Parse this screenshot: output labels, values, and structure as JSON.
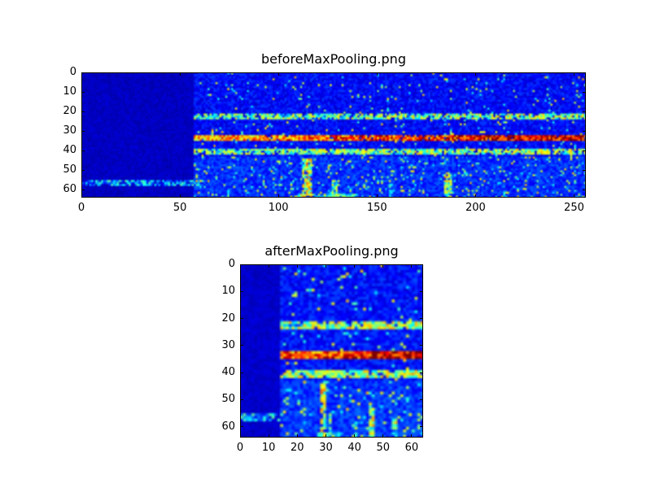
{
  "figure": {
    "background": "#ffffff",
    "colormap_low": "#00007f",
    "colormap_high": "#7f0000"
  },
  "chart_data": [
    {
      "type": "heatmap",
      "title": "beforeMaxPooling.png",
      "colormap": "jet",
      "rows": 64,
      "cols": 256,
      "x_max": 256,
      "y_max": 64,
      "xticks": [
        "0",
        "50",
        "100",
        "150",
        "200",
        "250"
      ],
      "xtick_values": [
        0,
        50,
        100,
        150,
        200,
        250
      ],
      "yticks": [
        "0",
        "10",
        "20",
        "30",
        "40",
        "50",
        "60"
      ],
      "ytick_values": [
        0,
        10,
        20,
        30,
        40,
        50,
        60
      ],
      "grid": false,
      "legend": "none",
      "features": {
        "seed": 7,
        "background_level": 0.13,
        "quiet_cols": 57,
        "quiet_level": 0.04,
        "speckle_prob": 0.035,
        "lower_boost": {
          "row_start": 43,
          "boost": 0.04,
          "speckle": 0.05
        },
        "bands": [
          {
            "row": 22,
            "half": 1,
            "base": 0.4,
            "ramp": 0.1,
            "col_start": 57,
            "density": 0.75
          },
          {
            "row": 33,
            "half": 1,
            "base": 0.62,
            "ramp": 0.3,
            "col_start": 57,
            "density": 0.95
          },
          {
            "row": 40,
            "half": 1,
            "base": 0.42,
            "ramp": 0.08,
            "col_start": 57,
            "density": 0.8
          },
          {
            "row": 56,
            "half": 1,
            "base": 0.26,
            "ramp": 0.0,
            "col_start": 0,
            "col_end": 60,
            "density": 0.85
          }
        ],
        "bursts": [
          {
            "col": 112,
            "span": 5,
            "row0": 44,
            "row1": 63,
            "int": 0.8
          },
          {
            "col": 127,
            "span": 3,
            "row0": 55,
            "row1": 63,
            "int": 0.65
          },
          {
            "col": 156,
            "span": 2,
            "row0": 57,
            "row1": 63,
            "int": 0.5
          },
          {
            "col": 184,
            "span": 4,
            "row0": 51,
            "row1": 63,
            "int": 0.75
          },
          {
            "col": 214,
            "span": 2,
            "row0": 58,
            "row1": 63,
            "int": 0.45
          },
          {
            "col": 108,
            "span": 32,
            "row0": 62,
            "row1": 63,
            "int": 0.55
          }
        ]
      }
    },
    {
      "type": "heatmap",
      "title": "afterMaxPooling.png",
      "colormap": "jet",
      "rows": 64,
      "cols": 64,
      "x_max": 64,
      "y_max": 64,
      "xticks": [
        "0",
        "10",
        "20",
        "30",
        "40",
        "50",
        "60"
      ],
      "xtick_values": [
        0,
        10,
        20,
        30,
        40,
        50,
        60
      ],
      "yticks": [
        "0",
        "10",
        "20",
        "30",
        "40",
        "50",
        "60"
      ],
      "ytick_values": [
        0,
        10,
        20,
        30,
        40,
        50,
        60
      ],
      "grid": false,
      "legend": "none",
      "features": {
        "seed": 11,
        "background_level": 0.14,
        "quiet_cols": 14,
        "quiet_level": 0.05,
        "speckle_prob": 0.04,
        "lower_boost": {
          "row_start": 43,
          "boost": 0.04,
          "speckle": 0.06
        },
        "bands": [
          {
            "row": 22,
            "half": 1,
            "base": 0.45,
            "ramp": 0.1,
            "col_start": 14,
            "density": 0.85
          },
          {
            "row": 33,
            "half": 1,
            "base": 0.7,
            "ramp": 0.25,
            "col_start": 14,
            "density": 0.97
          },
          {
            "row": 40,
            "half": 1,
            "base": 0.45,
            "ramp": 0.08,
            "col_start": 14,
            "density": 0.85
          },
          {
            "row": 56,
            "half": 1,
            "base": 0.26,
            "ramp": 0.0,
            "col_start": 0,
            "col_end": 15,
            "density": 0.85
          }
        ],
        "bursts": [
          {
            "col": 28,
            "span": 2,
            "row0": 44,
            "row1": 63,
            "int": 0.8
          },
          {
            "col": 31,
            "span": 1,
            "row0": 55,
            "row1": 63,
            "int": 0.6
          },
          {
            "col": 45,
            "span": 2,
            "row0": 50,
            "row1": 63,
            "int": 0.75
          },
          {
            "col": 53,
            "span": 2,
            "row0": 57,
            "row1": 63,
            "int": 0.7
          },
          {
            "col": 40,
            "span": 1,
            "row0": 58,
            "row1": 63,
            "int": 0.5
          },
          {
            "col": 27,
            "span": 9,
            "row0": 62,
            "row1": 63,
            "int": 0.55
          }
        ]
      }
    }
  ]
}
